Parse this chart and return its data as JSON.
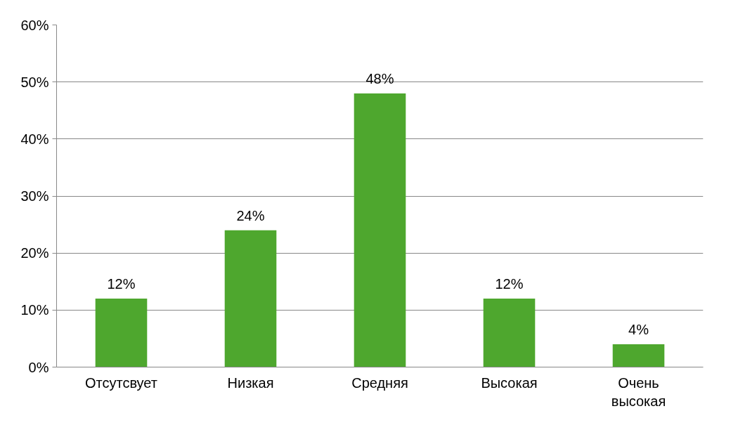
{
  "chart_data": {
    "type": "bar",
    "categories": [
      "Отсутсвует",
      "Низкая",
      "Средняя",
      "Высокая",
      "Очень высокая"
    ],
    "values": [
      12,
      24,
      48,
      12,
      4
    ],
    "value_labels": [
      "12%",
      "24%",
      "48%",
      "12%",
      "4%"
    ],
    "color": "#4ea72e",
    "ylim": [
      0,
      60
    ],
    "yticks": [
      {
        "value": 0,
        "label": "0%"
      },
      {
        "value": 10,
        "label": "10%"
      },
      {
        "value": 20,
        "label": "20%"
      },
      {
        "value": 30,
        "label": "30%"
      },
      {
        "value": 40,
        "label": "40%"
      },
      {
        "value": 50,
        "label": "50%"
      },
      {
        "value": 60,
        "label": "60%"
      }
    ],
    "grid": "y"
  }
}
